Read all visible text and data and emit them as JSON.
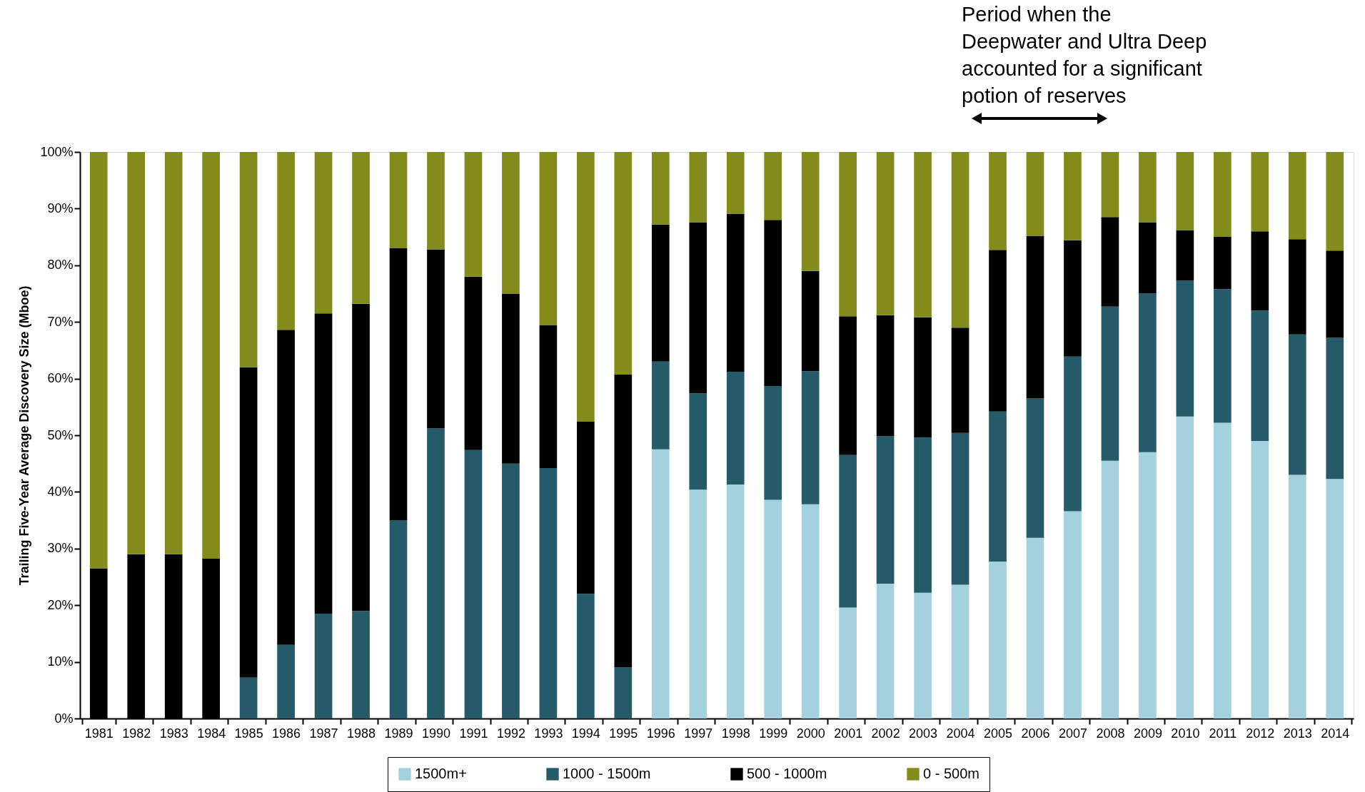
{
  "chart_data": {
    "type": "bar",
    "stacked": true,
    "ylabel": "Trailing Five-Year Average Discovery Size (Mboe)",
    "annotations": [
      "Period when the\nDeepwater and Ultra Deep\naccounted for a significant\npotion of reserves"
    ],
    "categories": [
      "1981",
      "1982",
      "1983",
      "1984",
      "1985",
      "1986",
      "1987",
      "1988",
      "1989",
      "1990",
      "1991",
      "1992",
      "1993",
      "1994",
      "1995",
      "1996",
      "1997",
      "1998",
      "1999",
      "2000",
      "2001",
      "2002",
      "2003",
      "2004",
      "2005",
      "2006",
      "2007",
      "2008",
      "2009",
      "2010",
      "2011",
      "2012",
      "2013",
      "2014"
    ],
    "series": [
      {
        "name": "1500m+",
        "color": "#a3d1dd",
        "values": [
          0,
          0,
          0,
          0,
          0,
          0,
          0,
          0,
          0,
          0,
          0,
          0,
          0,
          0,
          0,
          47.5,
          40.4,
          41.3,
          38.6,
          37.8,
          19.6,
          23.8,
          22.2,
          23.6,
          27.7,
          31.9,
          36.6,
          45.5,
          47,
          53.3,
          52.2,
          49,
          43,
          42.3
        ]
      },
      {
        "name": "1000 - 1500m",
        "color": "#255b69",
        "values": [
          0,
          0,
          0,
          0,
          7.2,
          13,
          18.5,
          19,
          35,
          51.2,
          47.4,
          45,
          44.2,
          22,
          9,
          15.5,
          17,
          19.9,
          20.1,
          23.5,
          26.9,
          26,
          27.4,
          26.8,
          26.5,
          24.6,
          27.3,
          27.2,
          28,
          24,
          23.6,
          23,
          24.8,
          24.9
        ]
      },
      {
        "name": "500 - 1000m",
        "color": "#000000",
        "values": [
          26.5,
          29,
          29,
          28.2,
          54.8,
          55.6,
          53,
          54.2,
          48,
          31.6,
          30.6,
          30,
          25.2,
          30.4,
          51.7,
          24.2,
          30.2,
          27.9,
          29.3,
          17.7,
          24.5,
          21.4,
          21.2,
          18.6,
          28.5,
          28.7,
          20.5,
          15.8,
          12.6,
          8.9,
          9.2,
          14,
          16.8,
          15.4
        ]
      },
      {
        "name": "0 - 500m",
        "color": "#838b1b",
        "values": [
          73.5,
          71,
          71,
          71.8,
          38,
          31.4,
          28.5,
          26.8,
          17,
          17.2,
          22,
          25,
          30.6,
          47.6,
          39.3,
          12.8,
          12.4,
          10.9,
          12,
          21,
          29,
          28.8,
          29.2,
          31,
          17.3,
          14.8,
          15.6,
          11.5,
          12.4,
          13.8,
          15,
          14,
          15.4,
          17.4
        ]
      }
    ],
    "ylim": [
      0,
      100
    ],
    "yticks": [
      {
        "value": 0,
        "label": "0%"
      },
      {
        "value": 10,
        "label": "10%"
      },
      {
        "value": 20,
        "label": "20%"
      },
      {
        "value": 30,
        "label": "30%"
      },
      {
        "value": 40,
        "label": "40%"
      },
      {
        "value": 50,
        "label": "50%"
      },
      {
        "value": 60,
        "label": "60%"
      },
      {
        "value": 70,
        "label": "70%"
      },
      {
        "value": 80,
        "label": "80%"
      },
      {
        "value": 90,
        "label": "90%"
      },
      {
        "value": 100,
        "label": "100%"
      }
    ],
    "grid": false,
    "legend": "bottom"
  }
}
